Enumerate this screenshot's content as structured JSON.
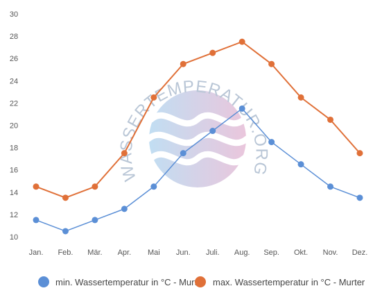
{
  "chart_data": {
    "type": "line",
    "categories": [
      "Jan.",
      "Feb.",
      "Mär.",
      "Apr.",
      "Mai",
      "Jun.",
      "Juli.",
      "Aug.",
      "Sep.",
      "Okt.",
      "Nov.",
      "Dez."
    ],
    "series": [
      {
        "name": "min. Wassertemperatur in °C - Murter",
        "color": "#5b8fd6",
        "values": [
          11.5,
          10.5,
          11.5,
          12.5,
          14.5,
          17.5,
          19.5,
          21.5,
          18.5,
          16.5,
          14.5,
          13.5
        ]
      },
      {
        "name": "max. Wassertemperatur in °C - Murter",
        "color": "#e07038",
        "values": [
          14.5,
          13.5,
          14.5,
          17.5,
          22.5,
          25.5,
          26.5,
          27.5,
          25.5,
          22.5,
          20.5,
          17.5
        ]
      }
    ],
    "ylim": [
      10,
      30
    ],
    "yticks": [
      10,
      12,
      14,
      16,
      18,
      20,
      22,
      24,
      26,
      28,
      30
    ],
    "grid": false,
    "legend": "bottom"
  },
  "watermark": {
    "text": "WASSERTEMPERATUR.ORG",
    "colors": [
      "#b6d8f0",
      "#e6bcd6"
    ]
  }
}
